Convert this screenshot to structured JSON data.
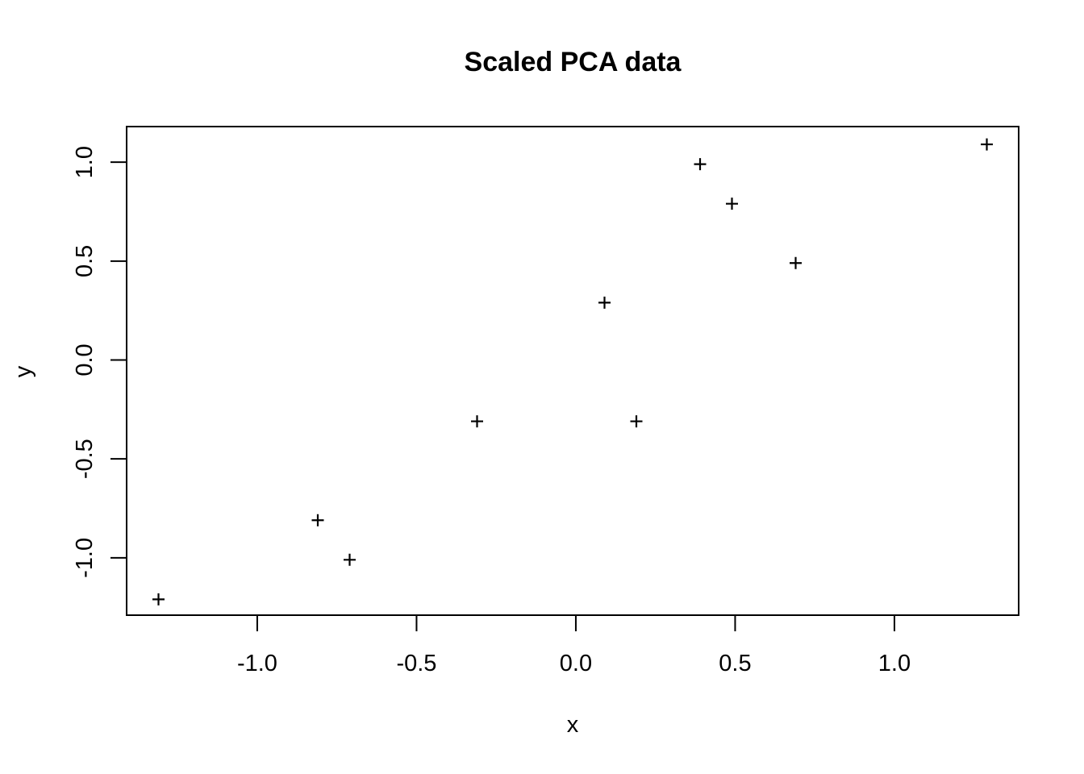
{
  "figure": {
    "background_color": "#ffffff",
    "foreground_color": "#000000"
  },
  "chart_data": {
    "type": "scatter",
    "title": "Scaled PCA data",
    "xlabel": "x",
    "ylabel": "y",
    "marker": "plus-sign",
    "marker_color": "#000000",
    "grid": false,
    "legend": "none",
    "xlim": [
      -1.41,
      1.39
    ],
    "ylim": [
      -1.29,
      1.18
    ],
    "x_ticks": [
      {
        "value": -1.0,
        "label": "-1.0"
      },
      {
        "value": -0.5,
        "label": "-0.5"
      },
      {
        "value": 0.0,
        "label": "0.0"
      },
      {
        "value": 0.5,
        "label": "0.5"
      },
      {
        "value": 1.0,
        "label": "1.0"
      }
    ],
    "y_ticks": [
      {
        "value": -1.0,
        "label": "-1.0"
      },
      {
        "value": -0.5,
        "label": "-0.5"
      },
      {
        "value": 0.0,
        "label": "0.0"
      },
      {
        "value": 0.5,
        "label": "0.5"
      },
      {
        "value": 1.0,
        "label": "1.0"
      }
    ],
    "points": [
      {
        "x": 0.69,
        "y": 0.49
      },
      {
        "x": -1.31,
        "y": -1.21
      },
      {
        "x": 0.39,
        "y": 0.99
      },
      {
        "x": 0.09,
        "y": 0.29
      },
      {
        "x": 1.29,
        "y": 1.09
      },
      {
        "x": 0.49,
        "y": 0.79
      },
      {
        "x": 0.19,
        "y": -0.31
      },
      {
        "x": -0.81,
        "y": -0.81
      },
      {
        "x": -0.31,
        "y": -0.31
      },
      {
        "x": -0.71,
        "y": -1.01
      }
    ]
  }
}
